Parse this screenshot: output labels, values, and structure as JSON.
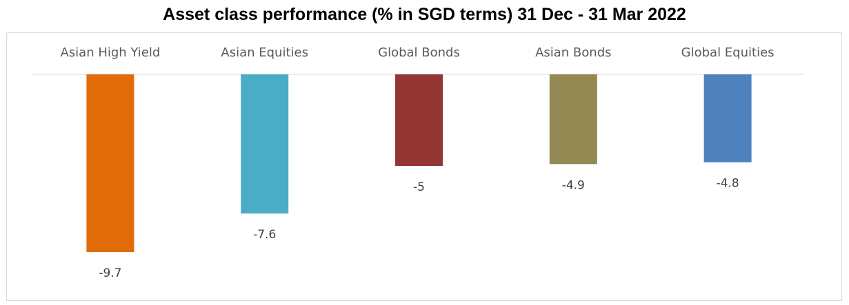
{
  "chart_data": {
    "type": "bar",
    "title": "Asset class performance (% in SGD terms) 31 Dec - 31 Mar 2022",
    "categories": [
      "Asian High Yield",
      "Asian Equities",
      "Global Bonds",
      "Asian Bonds",
      "Global Equities"
    ],
    "values": [
      -9.7,
      -7.6,
      -5,
      -4.9,
      -4.8
    ],
    "data_labels": [
      "-9.7",
      "-7.6",
      "-5",
      "-4.9",
      "-4.8"
    ],
    "colors": [
      "#e36c0a",
      "#4bacc6",
      "#943634",
      "#938953",
      "#4f81bd"
    ],
    "xlabel": "",
    "ylabel": "",
    "ylim": [
      -10,
      0
    ],
    "grid": false,
    "legend": "none",
    "category_labels_position": "top"
  }
}
